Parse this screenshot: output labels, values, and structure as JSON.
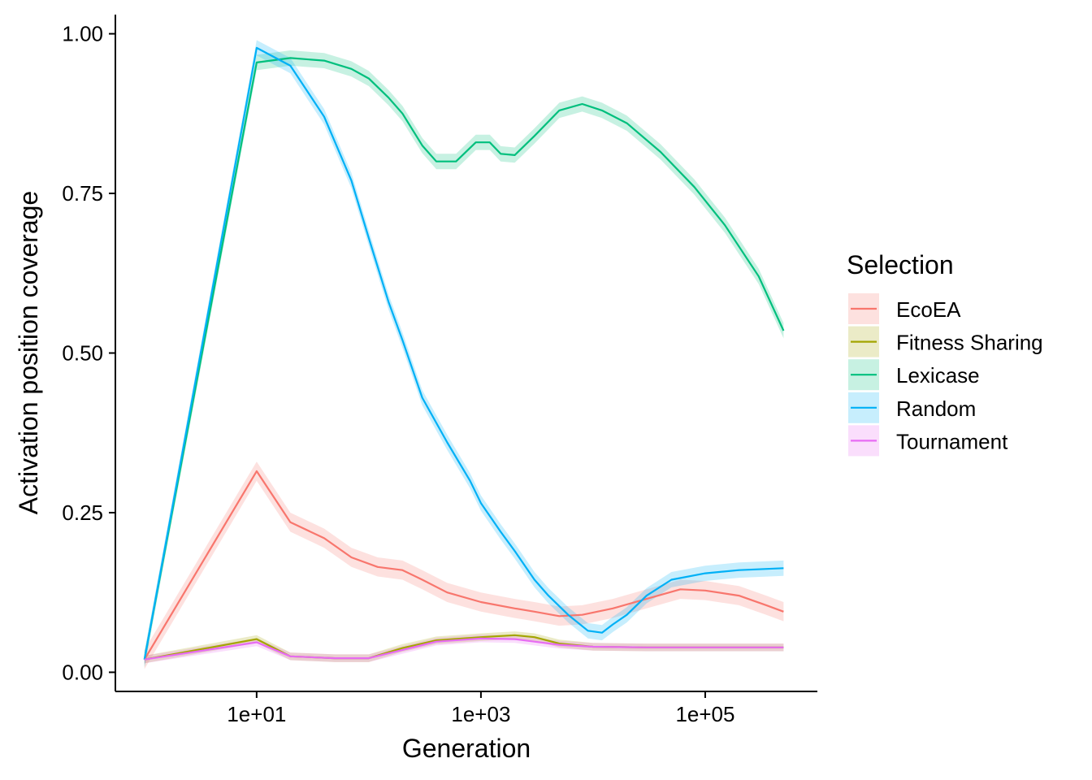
{
  "chart_data": {
    "type": "line",
    "xlabel": "Generation",
    "ylabel": "Activation position coverage",
    "xscale": "log10",
    "xlim": [
      0.55,
      1000000
    ],
    "ylim": [
      -0.03,
      1.03
    ],
    "x_ticks": [
      10,
      1000,
      100000
    ],
    "x_tick_labels": [
      "1e+01",
      "1e+03",
      "1e+05"
    ],
    "y_ticks": [
      0,
      0.25,
      0.5,
      0.75,
      1.0
    ],
    "y_tick_labels": [
      "0.00",
      "0.25",
      "0.50",
      "0.75",
      "1.00"
    ],
    "grid": false,
    "legend": {
      "title": "Selection",
      "position": "right"
    },
    "series": [
      {
        "name": "EcoEA",
        "color": "#F8766D",
        "points": [
          [
            1,
            0.02
          ],
          [
            10,
            0.315
          ],
          [
            20,
            0.235
          ],
          [
            40,
            0.21
          ],
          [
            70,
            0.18
          ],
          [
            120,
            0.165
          ],
          [
            200,
            0.16
          ],
          [
            300,
            0.145
          ],
          [
            500,
            0.125
          ],
          [
            1000,
            0.11
          ],
          [
            2000,
            0.1
          ],
          [
            3000,
            0.095
          ],
          [
            5000,
            0.088
          ],
          [
            8000,
            0.09
          ],
          [
            15000,
            0.1
          ],
          [
            30000,
            0.115
          ],
          [
            60000,
            0.13
          ],
          [
            100000,
            0.128
          ],
          [
            200000,
            0.12
          ],
          [
            350000,
            0.105
          ],
          [
            500000,
            0.095
          ]
        ],
        "band": 0.015
      },
      {
        "name": "Fitness Sharing",
        "color": "#A3A500",
        "points": [
          [
            1,
            0.02
          ],
          [
            10,
            0.052
          ],
          [
            20,
            0.025
          ],
          [
            50,
            0.022
          ],
          [
            100,
            0.022
          ],
          [
            200,
            0.038
          ],
          [
            400,
            0.05
          ],
          [
            1000,
            0.055
          ],
          [
            2000,
            0.058
          ],
          [
            3000,
            0.055
          ],
          [
            5000,
            0.045
          ],
          [
            10000,
            0.04
          ],
          [
            30000,
            0.039
          ],
          [
            100000,
            0.039
          ],
          [
            500000,
            0.039
          ]
        ],
        "band": 0.006
      },
      {
        "name": "Lexicase",
        "color": "#00BF7D",
        "points": [
          [
            1,
            0.02
          ],
          [
            10,
            0.955
          ],
          [
            20,
            0.962
          ],
          [
            40,
            0.958
          ],
          [
            70,
            0.945
          ],
          [
            100,
            0.93
          ],
          [
            150,
            0.9
          ],
          [
            200,
            0.875
          ],
          [
            300,
            0.825
          ],
          [
            400,
            0.8
          ],
          [
            600,
            0.8
          ],
          [
            900,
            0.83
          ],
          [
            1200,
            0.83
          ],
          [
            1500,
            0.812
          ],
          [
            2000,
            0.81
          ],
          [
            3000,
            0.84
          ],
          [
            5000,
            0.88
          ],
          [
            8000,
            0.89
          ],
          [
            12000,
            0.88
          ],
          [
            20000,
            0.86
          ],
          [
            40000,
            0.815
          ],
          [
            80000,
            0.76
          ],
          [
            150000,
            0.7
          ],
          [
            300000,
            0.62
          ],
          [
            500000,
            0.535
          ]
        ],
        "band": 0.012
      },
      {
        "name": "Random",
        "color": "#00B0F6",
        "points": [
          [
            1,
            0.02
          ],
          [
            10,
            0.978
          ],
          [
            20,
            0.95
          ],
          [
            40,
            0.87
          ],
          [
            70,
            0.77
          ],
          [
            100,
            0.68
          ],
          [
            150,
            0.58
          ],
          [
            200,
            0.52
          ],
          [
            300,
            0.43
          ],
          [
            500,
            0.36
          ],
          [
            800,
            0.3
          ],
          [
            1000,
            0.265
          ],
          [
            1500,
            0.22
          ],
          [
            2000,
            0.19
          ],
          [
            3000,
            0.145
          ],
          [
            4000,
            0.12
          ],
          [
            6000,
            0.09
          ],
          [
            9000,
            0.065
          ],
          [
            12000,
            0.062
          ],
          [
            15000,
            0.075
          ],
          [
            20000,
            0.09
          ],
          [
            30000,
            0.12
          ],
          [
            50000,
            0.145
          ],
          [
            100000,
            0.155
          ],
          [
            200000,
            0.16
          ],
          [
            500000,
            0.163
          ]
        ],
        "band": 0.012
      },
      {
        "name": "Tournament",
        "color": "#E76BF3",
        "points": [
          [
            1,
            0.02
          ],
          [
            10,
            0.047
          ],
          [
            20,
            0.025
          ],
          [
            50,
            0.022
          ],
          [
            100,
            0.022
          ],
          [
            200,
            0.035
          ],
          [
            400,
            0.048
          ],
          [
            1000,
            0.053
          ],
          [
            2000,
            0.052
          ],
          [
            3000,
            0.048
          ],
          [
            5000,
            0.043
          ],
          [
            10000,
            0.04
          ],
          [
            30000,
            0.039
          ],
          [
            100000,
            0.039
          ],
          [
            500000,
            0.039
          ]
        ],
        "band": 0.006
      }
    ]
  }
}
